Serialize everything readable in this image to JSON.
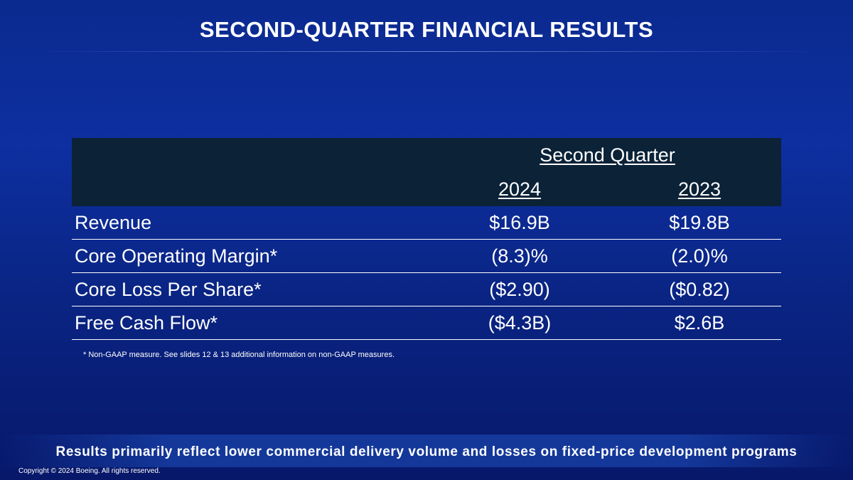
{
  "slide": {
    "title": "SECOND-QUARTER FINANCIAL RESULTS",
    "footnote": "* Non-GAAP measure. See slides 12 & 13 additional information on non-GAAP measures.",
    "bottom_message": "Results primarily reflect lower commercial delivery volume and losses on fixed-price development programs",
    "copyright": "Copyright © 2024 Boeing. All rights reserved."
  },
  "table": {
    "group_header": "Second Quarter",
    "columns": [
      "2024",
      "2023"
    ],
    "rows": [
      {
        "label": "Revenue",
        "values": [
          "$16.9B",
          "$19.8B"
        ]
      },
      {
        "label": "Core Operating Margin*",
        "values": [
          "(8.3)%",
          "(2.0)%"
        ]
      },
      {
        "label": "Core Loss Per Share*",
        "values": [
          "($2.90)",
          "($0.82)"
        ]
      },
      {
        "label": "Free Cash Flow*",
        "values": [
          "($4.3B)",
          "$2.6B"
        ]
      }
    ]
  },
  "colors": {
    "background": "#0b2a8f",
    "table_header": "#0b2237",
    "text": "#ffffff"
  }
}
